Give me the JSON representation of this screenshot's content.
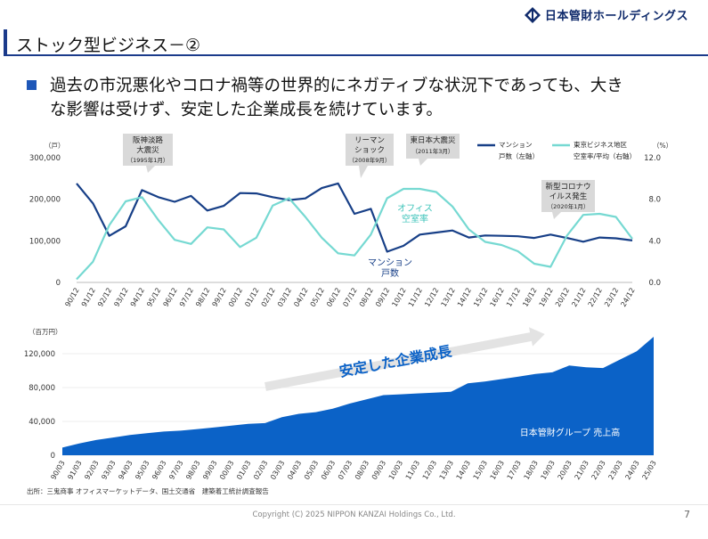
{
  "header": {
    "company": "日本管財ホールディングス",
    "title": "ストック型ビジネス－②"
  },
  "bullet": {
    "line1": "過去の市況悪化やコロナ禍等の世界的にネガティブな状況下であっても、大き",
    "line2": "な影響は受けず、安定した企業成長を続けています。"
  },
  "colors": {
    "navy": "#173f87",
    "teal": "#76d9d2",
    "area_blue": "#0b62c7",
    "callout_bg": "#d9d9d9",
    "brand": "#0f2a6b"
  },
  "chart_data": [
    {
      "type": "line",
      "x": [
        "90/12",
        "91/12",
        "92/12",
        "93/12",
        "94/12",
        "95/12",
        "96/12",
        "97/12",
        "98/12",
        "99/12",
        "00/12",
        "01/12",
        "02/12",
        "03/12",
        "04/12",
        "05/12",
        "06/12",
        "07/12",
        "08/12",
        "09/12",
        "10/12",
        "11/12",
        "12/12",
        "13/12",
        "14/12",
        "15/12",
        "16/12",
        "17/12",
        "18/12",
        "19/12",
        "20/12",
        "21/12",
        "22/12",
        "23/12",
        "24/12"
      ],
      "series": [
        {
          "name": "マンション戸数（左軸）",
          "axis": "left",
          "color": "#173f87",
          "values": [
            238000,
            190000,
            112000,
            135000,
            222000,
            205000,
            194000,
            208000,
            173000,
            184000,
            215000,
            214000,
            205000,
            198000,
            202000,
            227000,
            238000,
            165000,
            177000,
            74000,
            88000,
            115000,
            120000,
            125000,
            108000,
            113000,
            112000,
            111000,
            107000,
            115000,
            107000,
            98000,
            108000,
            106000,
            101000
          ]
        },
        {
          "name": "東京ビジネス地区空室率／平均（右軸）",
          "axis": "right",
          "color": "#76d9d2",
          "values": [
            0.3,
            2.0,
            5.5,
            7.8,
            8.2,
            6.0,
            4.1,
            3.7,
            5.3,
            5.1,
            3.4,
            4.3,
            7.4,
            8.1,
            6.3,
            4.3,
            2.8,
            2.6,
            4.6,
            8.1,
            9.0,
            9.0,
            8.7,
            7.3,
            5.1,
            3.9,
            3.6,
            3.0,
            1.8,
            1.5,
            4.5,
            6.5,
            6.6,
            6.3,
            4.2
          ]
        }
      ],
      "y_left": {
        "unit": "（戸）",
        "ticks": [
          "0",
          "100,000",
          "200,000",
          "300,000"
        ],
        "ylim": [
          0,
          300000
        ]
      },
      "y_right": {
        "unit": "（%）",
        "ticks": [
          "0.0",
          "4.0",
          "8.0",
          "12.0"
        ],
        "ylim": [
          0,
          12
        ]
      },
      "legend": {
        "mansion_line1": "マンション",
        "mansion_line2": "戸数（左軸）",
        "vacancy_line1": "東京ビジネス地区",
        "vacancy_line2": "空室率/平均（右軸）"
      },
      "annotations": {
        "vacancy_label_1": "オフィス",
        "vacancy_label_2": "空室率",
        "mansion_label_1": "マンション",
        "mansion_label_2": "戸数"
      },
      "callouts": [
        {
          "lines": [
            "阪神淡路",
            "大震災",
            "（1995年1月）"
          ]
        },
        {
          "lines": [
            "リーマン",
            "ショック",
            "（2008年9月）"
          ]
        },
        {
          "lines": [
            "東日本大震災",
            "（2011年3月）"
          ]
        },
        {
          "lines": [
            "新型コロナウ",
            "イルス発生",
            "（2020年1月）"
          ]
        }
      ]
    },
    {
      "type": "area",
      "x": [
        "90/03",
        "91/03",
        "92/03",
        "93/03",
        "94/03",
        "95/03",
        "96/03",
        "97/03",
        "98/03",
        "99/03",
        "00/03",
        "01/03",
        "02/03",
        "03/03",
        "04/03",
        "05/03",
        "06/03",
        "07/03",
        "08/03",
        "09/03",
        "10/03",
        "11/03",
        "12/03",
        "13/03",
        "14/03",
        "15/03",
        "16/03",
        "17/03",
        "18/03",
        "19/03",
        "20/03",
        "21/03",
        "22/03",
        "23/03",
        "24/03",
        "25/03"
      ],
      "series": [
        {
          "name": "日本管財グループ 売上高",
          "color": "#0b62c7",
          "values": [
            9000,
            14000,
            18000,
            21000,
            24000,
            26000,
            28000,
            29000,
            31000,
            33000,
            35000,
            37000,
            38000,
            45000,
            49000,
            51000,
            55000,
            61000,
            66000,
            71000,
            72000,
            73000,
            74000,
            75000,
            85000,
            87000,
            90000,
            93000,
            96000,
            98000,
            106000,
            104000,
            103000,
            113000,
            123000,
            140000
          ]
        }
      ],
      "y": {
        "unit": "（百万円）",
        "ticks": [
          "0",
          "40,000",
          "80,000",
          "120,000"
        ],
        "ylim": [
          0,
          140000
        ]
      },
      "arrow_label": "安定した企業成長"
    }
  ],
  "source": "出所：三鬼商事 オフィスマーケットデータ、国土交通省　建築着工統計調査報告",
  "footer": {
    "copyright": "Copyright (C) 2025 NIPPON KANZAI Holdings Co., Ltd.",
    "page": "7"
  }
}
